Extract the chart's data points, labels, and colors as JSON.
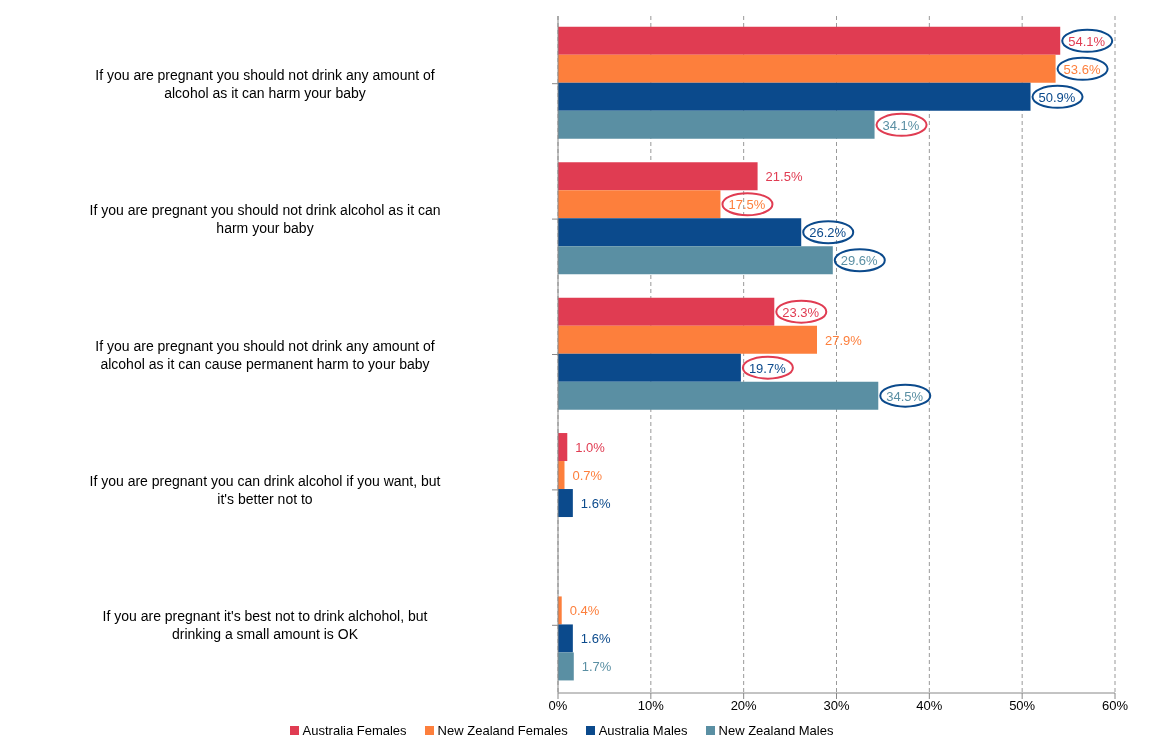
{
  "chart_data": {
    "type": "bar",
    "orientation": "horizontal",
    "categories": [
      "If you are pregnant you should not drink any amount of alcohol as it can harm your baby",
      "If you are pregnant you should not drink alcohol as it can harm your baby",
      "If you are pregnant you should not drink any amount of alcohol as it can cause permanent harm to your baby",
      "If you are pregnant you can drink alcohol if you want, but it's better not to",
      "If you are pregnant it's best not to drink alchohol, but drinking a small amount is OK"
    ],
    "series": [
      {
        "name": "Australia Females",
        "color": "#e03c52",
        "values": [
          54.1,
          21.5,
          23.3,
          1.0,
          null
        ],
        "value_labels": [
          "54.1%",
          "21.5%",
          "23.3%",
          "1.0%",
          null
        ]
      },
      {
        "name": "New Zealand Females",
        "color": "#fd7f3c",
        "values": [
          53.6,
          17.5,
          27.9,
          0.7,
          0.4
        ],
        "value_labels": [
          "53.6%",
          "17.5%",
          "27.9%",
          "0.7%",
          "0.4%"
        ]
      },
      {
        "name": "Australia Males",
        "color": "#0b4a8c",
        "values": [
          50.9,
          26.2,
          19.7,
          1.6,
          1.6
        ],
        "value_labels": [
          "50.9%",
          "26.2%",
          "19.7%",
          "1.6%",
          "1.6%"
        ]
      },
      {
        "name": "New Zealand Males",
        "color": "#5a8fa3",
        "values": [
          34.1,
          29.6,
          34.5,
          null,
          1.7
        ],
        "value_labels": [
          "34.1%",
          "29.6%",
          "34.5%",
          null,
          "1.7%"
        ]
      }
    ],
    "xlim": [
      0,
      60
    ],
    "xticks": [
      {
        "value": 0,
        "label": "0%"
      },
      {
        "value": 10,
        "label": "10%"
      },
      {
        "value": 20,
        "label": "20%"
      },
      {
        "value": 30,
        "label": "30%"
      },
      {
        "value": 40,
        "label": "40%"
      },
      {
        "value": 50,
        "label": "50%"
      },
      {
        "value": 60,
        "label": "60%"
      }
    ],
    "grid": "x",
    "legend": "bottom"
  }
}
